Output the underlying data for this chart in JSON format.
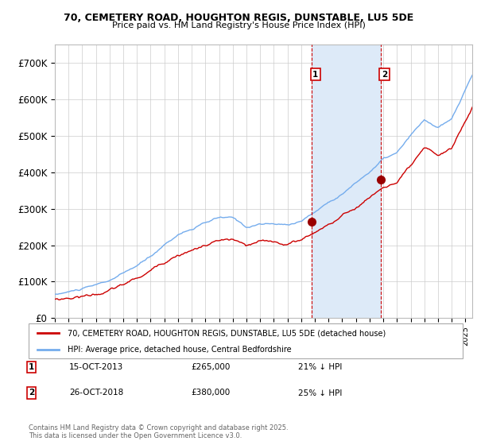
{
  "title_line1": "70, CEMETERY ROAD, HOUGHTON REGIS, DUNSTABLE, LU5 5DE",
  "title_line2": "Price paid vs. HM Land Registry's House Price Index (HPI)",
  "ylim": [
    0,
    750000
  ],
  "yticks": [
    0,
    100000,
    200000,
    300000,
    400000,
    500000,
    600000,
    700000
  ],
  "ytick_labels": [
    "£0",
    "£100K",
    "£200K",
    "£300K",
    "£400K",
    "£500K",
    "£600K",
    "£700K"
  ],
  "hpi_color": "#74aced",
  "price_color": "#cc0000",
  "marker_color": "#990000",
  "purchase1_date": 2013.79,
  "purchase1_price": 265000,
  "purchase2_date": 2018.82,
  "purchase2_price": 380000,
  "vline_color": "#cc0000",
  "shade_color": "#ddeaf8",
  "legend_label1": "70, CEMETERY ROAD, HOUGHTON REGIS, DUNSTABLE, LU5 5DE (detached house)",
  "legend_label2": "HPI: Average price, detached house, Central Bedfordshire",
  "table_row1": [
    "1",
    "15-OCT-2013",
    "£265,000",
    "21% ↓ HPI"
  ],
  "table_row2": [
    "2",
    "26-OCT-2018",
    "£380,000",
    "25% ↓ HPI"
  ],
  "footer": "Contains HM Land Registry data © Crown copyright and database right 2025.\nThis data is licensed under the Open Government Licence v3.0.",
  "background_color": "#ffffff",
  "grid_color": "#cccccc",
  "xmin": 1995.0,
  "xmax": 2025.5
}
